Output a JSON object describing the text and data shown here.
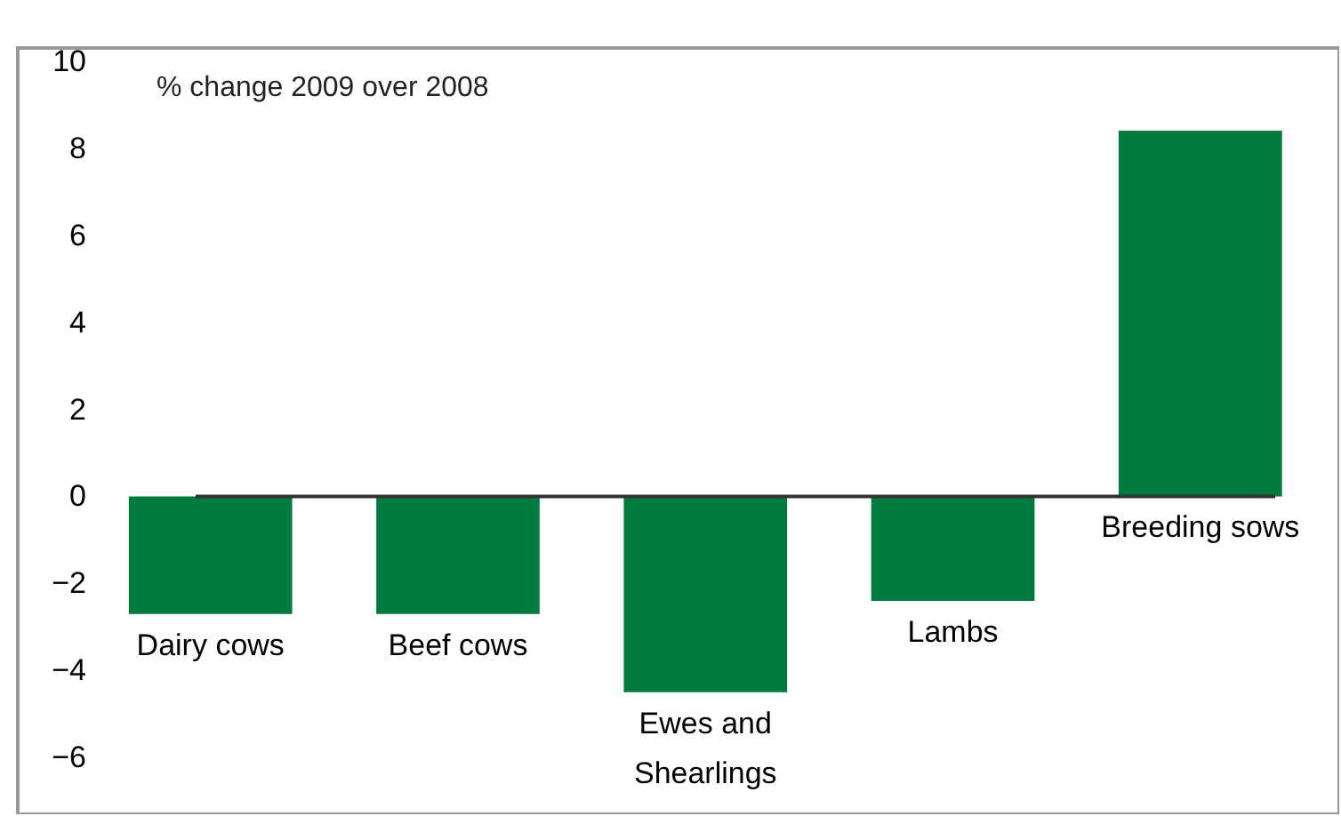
{
  "chart_data": {
    "type": "bar",
    "ylabel": "% change 2009 over 2008",
    "categories": [
      "Dairy cows",
      "Beef cows",
      "Ewes and\nShearlings",
      "Lambs",
      "Breeding sows"
    ],
    "values": [
      -2.7,
      -2.7,
      -4.5,
      -2.4,
      8.4
    ],
    "color": "#007a3d",
    "ylim": [
      -7.3,
      10.3
    ],
    "yticks": [
      -6,
      -4,
      -2,
      0,
      2,
      4,
      6,
      8,
      10
    ],
    "ref_lines": [
      {
        "axis": "y",
        "value": 0,
        "color": "#333333"
      }
    ]
  }
}
